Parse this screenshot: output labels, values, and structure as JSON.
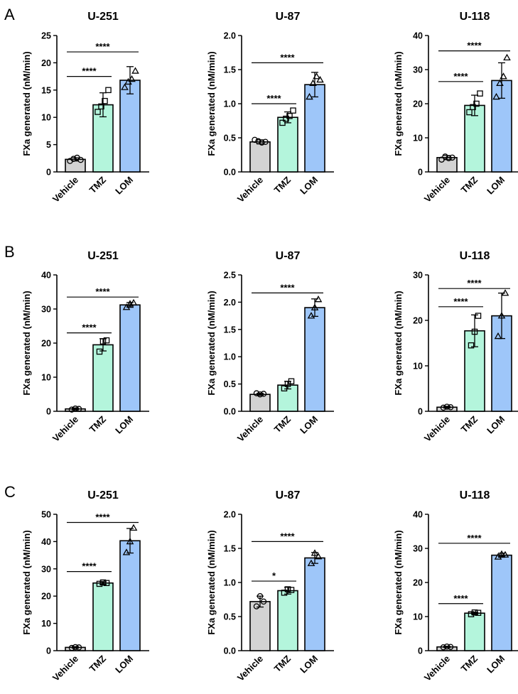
{
  "figure": {
    "row_labels": [
      "A",
      "B",
      "C"
    ],
    "colors": {
      "Vehicle": "#d3d3d3",
      "TMZ": "#b4f5dc",
      "LOM": "#9ec6f9",
      "ink": "#000000"
    },
    "marker_shapes": {
      "Vehicle": "circle",
      "TMZ": "square",
      "LOM": "triangle"
    }
  },
  "chart_data": [
    {
      "type": "bar",
      "panel": "A",
      "title": "U-251",
      "xlabel": "",
      "ylabel": "FXa generated (nM/min)",
      "categories": [
        "Vehicle",
        "TMZ",
        "LOM"
      ],
      "values": [
        2.3,
        12.3,
        16.8
      ],
      "errors": [
        0.3,
        2.2,
        2.5
      ],
      "points": [
        [
          2.0,
          2.4,
          2.6,
          2.2
        ],
        [
          11.0,
          12.0,
          13.0,
          15.0
        ],
        [
          15.5,
          16.5,
          17.0,
          18.5
        ]
      ],
      "ylim": [
        0,
        25
      ],
      "yticks": [
        0,
        5,
        10,
        15,
        20,
        25
      ],
      "yticklabels": [
        "0",
        "5",
        "10",
        "15",
        "20",
        "25"
      ],
      "significance": [
        {
          "from": "Vehicle",
          "to": "TMZ",
          "label": "****",
          "y": 17.5
        },
        {
          "from": "Vehicle",
          "to": "LOM",
          "label": "****",
          "y": 22.0
        }
      ]
    },
    {
      "type": "bar",
      "panel": "A",
      "title": "U-87",
      "xlabel": "",
      "ylabel": "FXa generated (nM/min)",
      "categories": [
        "Vehicle",
        "TMZ",
        "LOM"
      ],
      "values": [
        0.44,
        0.8,
        1.28
      ],
      "errors": [
        0.03,
        0.08,
        0.18
      ],
      "points": [
        [
          0.47,
          0.45,
          0.43,
          0.44
        ],
        [
          0.72,
          0.78,
          0.82,
          0.9
        ],
        [
          1.1,
          1.3,
          1.4,
          1.35
        ]
      ],
      "ylim": [
        0,
        2.0
      ],
      "yticks": [
        0,
        0.5,
        1.0,
        1.5,
        2.0
      ],
      "yticklabels": [
        "0.0",
        "0.5",
        "1.0",
        "1.5",
        "2.0"
      ],
      "significance": [
        {
          "from": "Vehicle",
          "to": "TMZ",
          "label": "****",
          "y": 1.0
        },
        {
          "from": "Vehicle",
          "to": "LOM",
          "label": "****",
          "y": 1.6
        }
      ]
    },
    {
      "type": "bar",
      "panel": "A",
      "title": "U-118",
      "xlabel": "",
      "ylabel": "FXa generated (nM/min)",
      "categories": [
        "Vehicle",
        "TMZ",
        "LOM"
      ],
      "values": [
        4.2,
        19.5,
        26.8
      ],
      "errors": [
        0.6,
        3.0,
        5.2
      ],
      "points": [
        [
          3.6,
          4.5,
          4.0,
          4.2
        ],
        [
          17.5,
          19.0,
          20.0,
          23.0
        ],
        [
          22.0,
          26.0,
          28.0,
          33.5
        ]
      ],
      "ylim": [
        0,
        40
      ],
      "yticks": [
        0,
        10,
        20,
        30,
        40
      ],
      "yticklabels": [
        "0",
        "10",
        "20",
        "30",
        "40"
      ],
      "significance": [
        {
          "from": "Vehicle",
          "to": "TMZ",
          "label": "****",
          "y": 26.5
        },
        {
          "from": "Vehicle",
          "to": "LOM",
          "label": "****",
          "y": 35.5
        }
      ]
    },
    {
      "type": "bar",
      "panel": "B",
      "title": "U-251",
      "xlabel": "",
      "ylabel": "FXa generated (nM/min)",
      "categories": [
        "Vehicle",
        "TMZ",
        "LOM"
      ],
      "values": [
        0.7,
        19.5,
        31.2
      ],
      "errors": [
        0.3,
        1.8,
        0.7
      ],
      "points": [
        [
          0.5,
          0.8,
          0.7
        ],
        [
          17.5,
          20.5,
          20.8
        ],
        [
          30.5,
          31.5,
          31.8
        ]
      ],
      "ylim": [
        0,
        40
      ],
      "yticks": [
        0,
        10,
        20,
        30,
        40
      ],
      "yticklabels": [
        "0",
        "10",
        "20",
        "30",
        "40"
      ],
      "significance": [
        {
          "from": "Vehicle",
          "to": "TMZ",
          "label": "****",
          "y": 23.0
        },
        {
          "from": "Vehicle",
          "to": "LOM",
          "label": "****",
          "y": 33.5
        }
      ]
    },
    {
      "type": "bar",
      "panel": "B",
      "title": "U-87",
      "xlabel": "",
      "ylabel": "FXa generated (nM/min)",
      "categories": [
        "Vehicle",
        "TMZ",
        "LOM"
      ],
      "values": [
        0.31,
        0.48,
        1.9
      ],
      "errors": [
        0.02,
        0.07,
        0.16
      ],
      "points": [
        [
          0.33,
          0.31,
          0.32
        ],
        [
          0.42,
          0.5,
          0.55
        ],
        [
          1.75,
          1.9,
          2.05
        ]
      ],
      "ylim": [
        0,
        2.5
      ],
      "yticks": [
        0,
        0.5,
        1.0,
        1.5,
        2.0,
        2.5
      ],
      "yticklabels": [
        "0.0",
        "0.5",
        "1.0",
        "1.5",
        "2.0",
        "2.5"
      ],
      "significance": [
        {
          "from": "Vehicle",
          "to": "LOM",
          "label": "****",
          "y": 2.17
        }
      ]
    },
    {
      "type": "bar",
      "panel": "B",
      "title": "U-118",
      "xlabel": "",
      "ylabel": "FXa generated (nM/min)",
      "categories": [
        "Vehicle",
        "TMZ",
        "LOM"
      ],
      "values": [
        0.9,
        17.7,
        21.0
      ],
      "errors": [
        0.2,
        3.5,
        5.0
      ],
      "points": [
        [
          0.8,
          1.0,
          0.9
        ],
        [
          14.5,
          17.5,
          21.0
        ],
        [
          16.5,
          21.0,
          26.0
        ]
      ],
      "ylim": [
        0,
        30
      ],
      "yticks": [
        0,
        10,
        20,
        30
      ],
      "yticklabels": [
        "0",
        "10",
        "20",
        "30"
      ],
      "significance": [
        {
          "from": "Vehicle",
          "to": "TMZ",
          "label": "****",
          "y": 23.0
        },
        {
          "from": "Vehicle",
          "to": "LOM",
          "label": "****",
          "y": 27.0
        }
      ]
    },
    {
      "type": "bar",
      "panel": "C",
      "title": "U-251",
      "xlabel": "",
      "ylabel": "FXa generated (nM/min)",
      "categories": [
        "Vehicle",
        "TMZ",
        "LOM"
      ],
      "values": [
        1.2,
        24.8,
        40.3
      ],
      "errors": [
        0.3,
        0.5,
        4.5
      ],
      "points": [
        [
          1.0,
          1.3,
          1.2
        ],
        [
          24.5,
          25.0,
          24.8
        ],
        [
          36.0,
          40.0,
          45.0
        ]
      ],
      "ylim": [
        0,
        50
      ],
      "yticks": [
        0,
        10,
        20,
        30,
        40,
        50
      ],
      "yticklabels": [
        "0",
        "10",
        "20",
        "30",
        "40",
        "50"
      ],
      "significance": [
        {
          "from": "Vehicle",
          "to": "TMZ",
          "label": "****",
          "y": 29.0
        },
        {
          "from": "Vehicle",
          "to": "LOM",
          "label": "****",
          "y": 47.0
        }
      ]
    },
    {
      "type": "bar",
      "panel": "C",
      "title": "U-87",
      "xlabel": "",
      "ylabel": "FXa generated (nM/min)",
      "categories": [
        "Vehicle",
        "TMZ",
        "LOM"
      ],
      "values": [
        0.72,
        0.88,
        1.36
      ],
      "errors": [
        0.08,
        0.05,
        0.08
      ],
      "points": [
        [
          0.65,
          0.8,
          0.72
        ],
        [
          0.85,
          0.9,
          0.89
        ],
        [
          1.28,
          1.43,
          1.38
        ]
      ],
      "ylim": [
        0,
        2.0
      ],
      "yticks": [
        0,
        0.5,
        1.0,
        1.5,
        2.0
      ],
      "yticklabels": [
        "0.0",
        "0.5",
        "1.0",
        "1.5",
        "2.0"
      ],
      "significance": [
        {
          "from": "Vehicle",
          "to": "TMZ",
          "label": "*",
          "y": 1.02
        },
        {
          "from": "Vehicle",
          "to": "LOM",
          "label": "****",
          "y": 1.6
        }
      ]
    },
    {
      "type": "bar",
      "panel": "C",
      "title": "U-118",
      "xlabel": "",
      "ylabel": "FXa generated (nM/min)",
      "categories": [
        "Vehicle",
        "TMZ",
        "LOM"
      ],
      "values": [
        1.1,
        11.0,
        28.0
      ],
      "errors": [
        0.2,
        0.3,
        0.6
      ],
      "points": [
        [
          1.0,
          1.2,
          1.1
        ],
        [
          10.7,
          11.2,
          11.1
        ],
        [
          27.5,
          28.3,
          28.1
        ]
      ],
      "ylim": [
        0,
        40
      ],
      "yticks": [
        0,
        10,
        20,
        30,
        40
      ],
      "yticklabels": [
        "0",
        "10",
        "20",
        "30",
        "40"
      ],
      "significance": [
        {
          "from": "Vehicle",
          "to": "TMZ",
          "label": "****",
          "y": 13.8
        },
        {
          "from": "Vehicle",
          "to": "LOM",
          "label": "****",
          "y": 31.5
        }
      ]
    }
  ]
}
